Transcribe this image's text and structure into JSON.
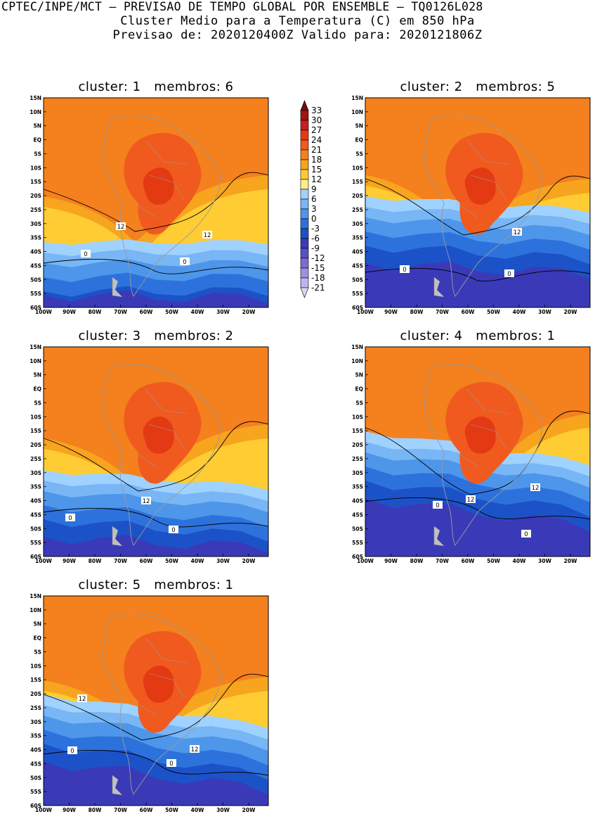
{
  "header": {
    "line1": "CPTEC/INPE/MCT — PREVISAO DE TEMPO GLOBAL POR ENSEMBLE — TQ0126L028",
    "line2": "Cluster Medio para a Temperatura (C) em 850 hPa",
    "line3": "Previsao de: 2020120400Z   Valido para: 2020121806Z"
  },
  "axes": {
    "lat_ticks": [
      "15N",
      "10N",
      "5N",
      "EQ",
      "5S",
      "10S",
      "15S",
      "20S",
      "25S",
      "30S",
      "35S",
      "40S",
      "45S",
      "50S",
      "55S",
      "60S"
    ],
    "lon_ticks": [
      "100W",
      "90W",
      "80W",
      "70W",
      "60W",
      "50W",
      "40W",
      "30W",
      "20W"
    ]
  },
  "colorbar": {
    "labels": [
      "33",
      "30",
      "27",
      "24",
      "21",
      "18",
      "15",
      "12",
      "9",
      "6",
      "3",
      "0",
      "-3",
      "-6",
      "-9",
      "-12",
      "-15",
      "-18",
      "-21"
    ],
    "colors": [
      "#7a0a0a",
      "#a01414",
      "#c82020",
      "#e43a14",
      "#f05a1e",
      "#f4801e",
      "#f7a41e",
      "#ffcc33",
      "#ffeb8a",
      "#a0d2ff",
      "#78b6f5",
      "#4e96ea",
      "#2d72dc",
      "#1c52c8",
      "#3a3ab8",
      "#5a50c8",
      "#7c6cd4",
      "#a08ee0",
      "#c0b2ee",
      "#ddd4f7"
    ]
  },
  "panels": [
    {
      "title": "cluster: 1   membros: 6",
      "contour_labels": [
        "12",
        "12",
        "0",
        "0"
      ]
    },
    {
      "title": "cluster: 2   membros: 5",
      "contour_labels": [
        "12",
        "0",
        "0"
      ]
    },
    {
      "title": "cluster: 3   membros: 2",
      "contour_labels": [
        "12",
        "0",
        "0"
      ]
    },
    {
      "title": "cluster: 4   membros: 1",
      "contour_labels": [
        "12",
        "12",
        "0",
        "0"
      ]
    },
    {
      "title": "cluster: 5   membros: 1",
      "contour_labels": [
        "12",
        "12",
        "0",
        "0"
      ]
    }
  ]
}
